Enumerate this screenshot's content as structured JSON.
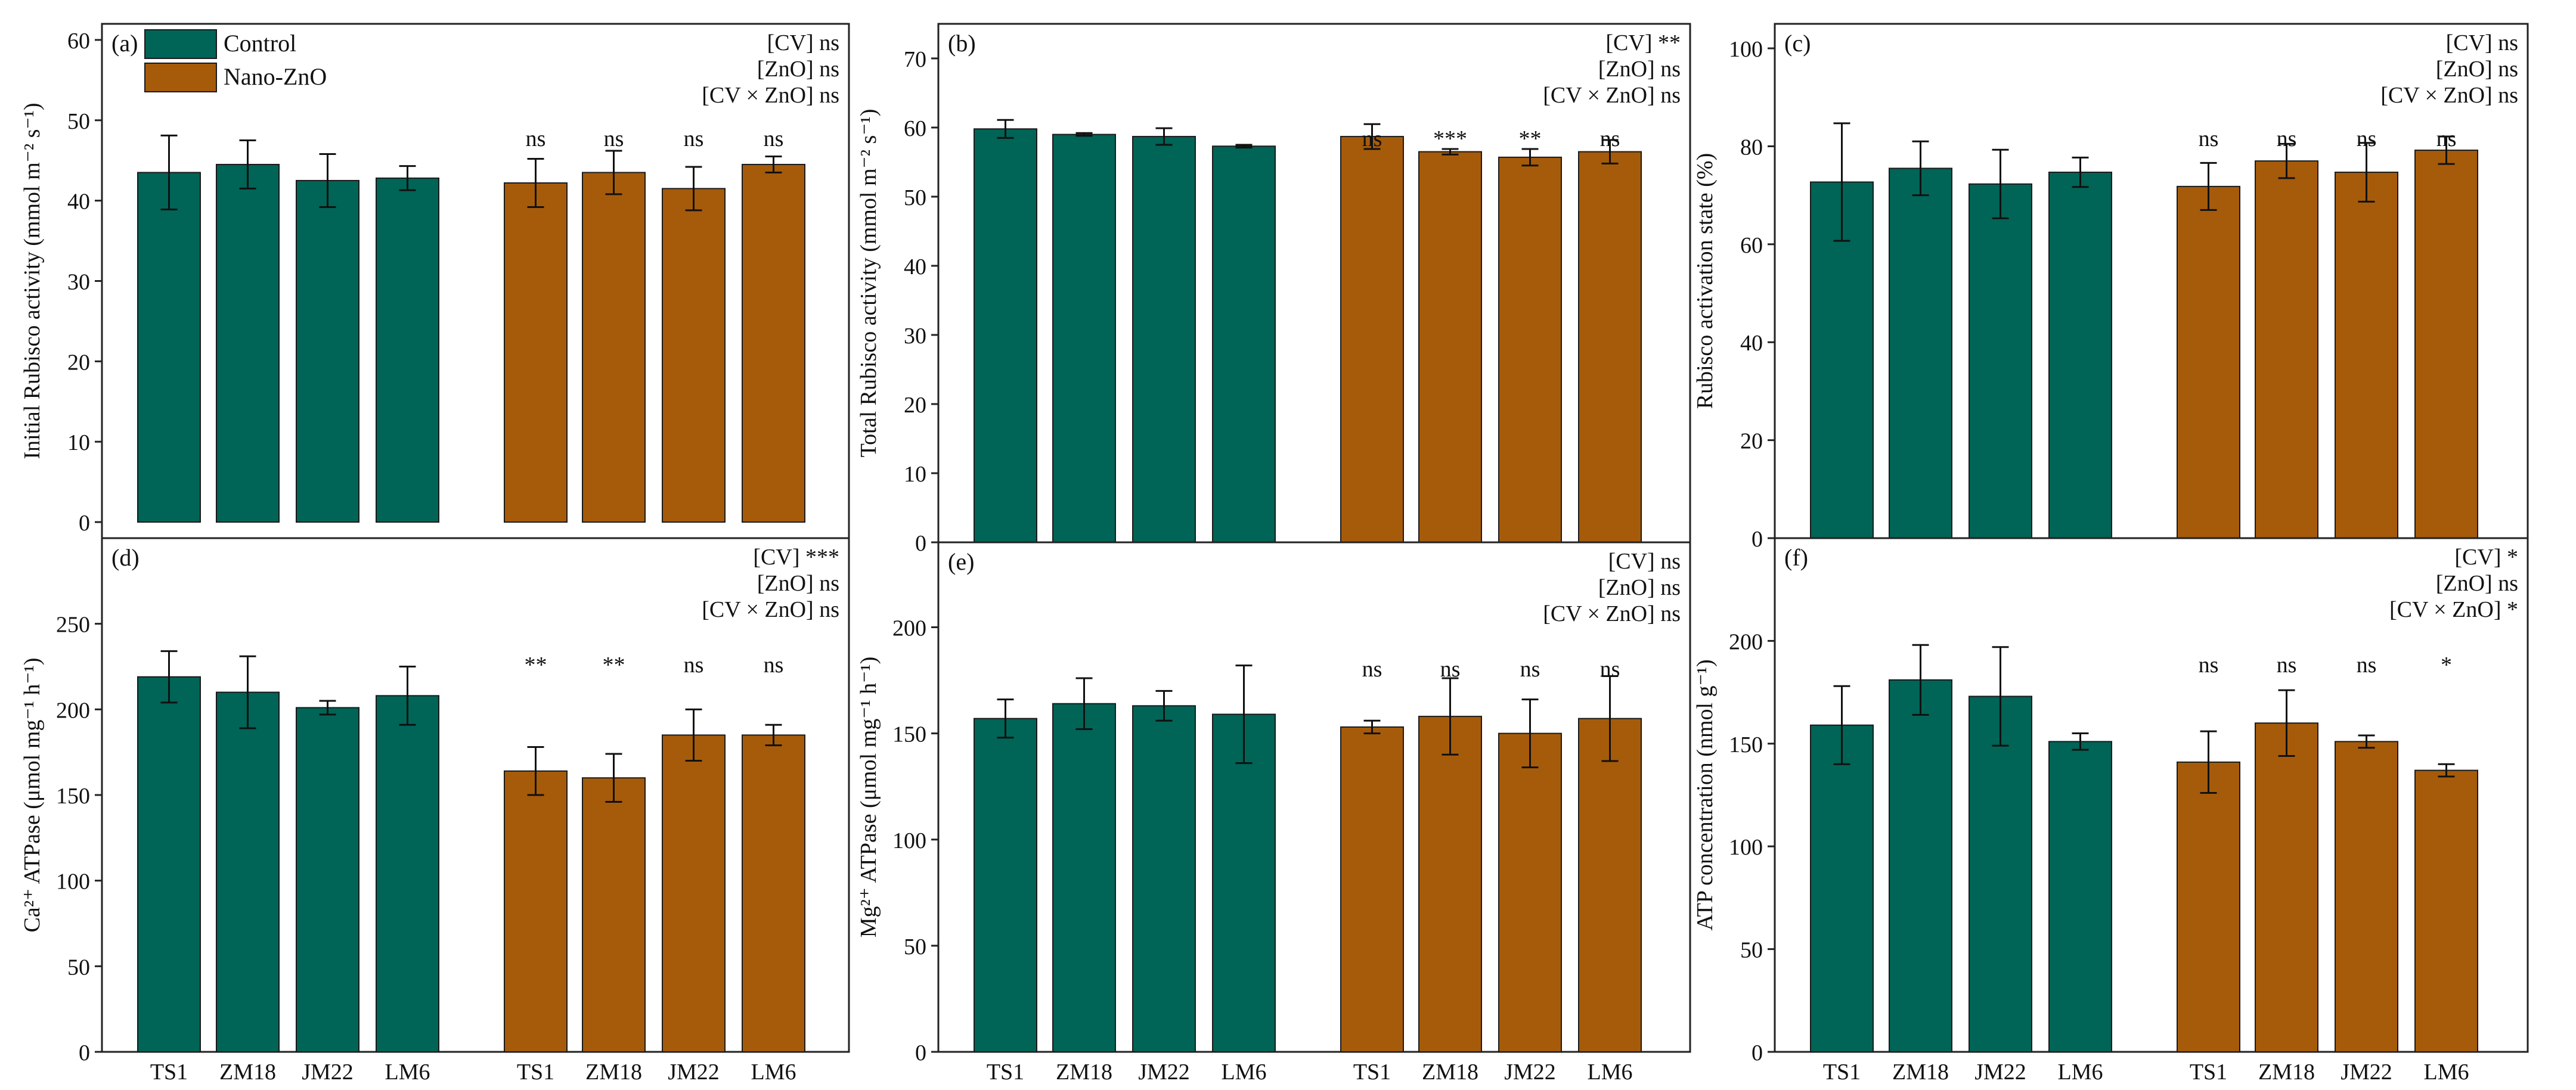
{
  "legend": {
    "control": "Control",
    "nano": "Nano-ZnO"
  },
  "colors": {
    "control": "#006457",
    "nano": "#A65B0A"
  },
  "chart_data": [
    {
      "id": "a",
      "label": "(a)",
      "type": "bar",
      "ylabel": "Initial Rubisco activity (mmol m⁻² s⁻¹)",
      "ylim": [
        -2,
        62
      ],
      "ticks": [
        0,
        10,
        20,
        30,
        40,
        50,
        60
      ],
      "categories": [
        "TS1",
        "ZM18",
        "JM22",
        "LM6"
      ],
      "series": [
        {
          "name": "Control",
          "values": [
            43.5,
            44.5,
            42.5,
            42.8
          ],
          "errors": [
            4.6,
            3.0,
            3.3,
            1.5
          ]
        },
        {
          "name": "Nano-ZnO",
          "values": [
            42.2,
            43.5,
            41.5,
            44.5
          ],
          "errors": [
            3.0,
            2.7,
            2.7,
            1.0
          ]
        }
      ],
      "significance": [
        "ns",
        "ns",
        "ns",
        "ns"
      ],
      "stats": [
        [
          "[CV]",
          "ns"
        ],
        [
          "[ZnO]",
          "ns"
        ],
        [
          "[CV × ZnO]",
          "ns"
        ]
      ]
    },
    {
      "id": "b",
      "label": "(b)",
      "type": "bar",
      "ylabel": "Total Rubisco activity (mmol m⁻² s⁻¹)",
      "ylim": [
        0,
        75
      ],
      "ticks": [
        0,
        10,
        20,
        30,
        40,
        50,
        60,
        70
      ],
      "categories": [
        "TS1",
        "ZM18",
        "JM22",
        "LM6"
      ],
      "series": [
        {
          "name": "Control",
          "values": [
            59.8,
            59.0,
            58.7,
            57.3
          ],
          "errors": [
            1.3,
            0.2,
            1.2,
            0.2
          ]
        },
        {
          "name": "Nano-ZnO",
          "values": [
            58.7,
            56.5,
            55.7,
            56.5
          ],
          "errors": [
            1.8,
            0.4,
            1.2,
            1.7
          ]
        }
      ],
      "significance": [
        "ns",
        "***",
        "**",
        "ns"
      ],
      "stats": [
        [
          "[CV]",
          "**"
        ],
        [
          "[ZnO]",
          "ns"
        ],
        [
          "[CV × ZnO]",
          "ns"
        ]
      ]
    },
    {
      "id": "c",
      "label": "(c)",
      "type": "bar",
      "ylabel": "Rubisco activation state (%)",
      "ylim": [
        0,
        105
      ],
      "ticks": [
        0,
        20,
        40,
        60,
        80,
        100
      ],
      "categories": [
        "TS1",
        "ZM18",
        "JM22",
        "LM6"
      ],
      "series": [
        {
          "name": "Control",
          "values": [
            72.7,
            75.5,
            72.3,
            74.7
          ],
          "errors": [
            12.0,
            5.5,
            7.0,
            3.0
          ]
        },
        {
          "name": "Nano-ZnO",
          "values": [
            71.8,
            77.0,
            74.7,
            79.2
          ],
          "errors": [
            4.8,
            3.5,
            6.0,
            2.8
          ]
        }
      ],
      "significance": [
        "ns",
        "ns",
        "ns",
        "ns"
      ],
      "stats": [
        [
          "[CV]",
          "ns"
        ],
        [
          "[ZnO]",
          "ns"
        ],
        [
          "[CV × ZnO]",
          "ns"
        ]
      ]
    },
    {
      "id": "d",
      "label": "(d)",
      "type": "bar",
      "ylabel": "Ca²⁺ ATPase (μmol mg⁻¹ h⁻¹)",
      "ylim": [
        0,
        300
      ],
      "ticks": [
        0,
        50,
        100,
        150,
        200,
        250
      ],
      "categories": [
        "TS1",
        "ZM18",
        "JM22",
        "LM6"
      ],
      "series": [
        {
          "name": "Control",
          "values": [
            219,
            210,
            201,
            208
          ],
          "errors": [
            15,
            21,
            4,
            17
          ]
        },
        {
          "name": "Nano-ZnO",
          "values": [
            164,
            160,
            185,
            185
          ],
          "errors": [
            14,
            14,
            15,
            6
          ]
        }
      ],
      "significance": [
        "**",
        "**",
        "ns",
        "ns"
      ],
      "stats": [
        [
          "[CV]",
          "***"
        ],
        [
          "[ZnO]",
          "ns"
        ],
        [
          "[CV × ZnO]",
          "ns"
        ]
      ]
    },
    {
      "id": "e",
      "label": "(e)",
      "type": "bar",
      "ylabel": "Mg²⁺ ATPase (μmol mg⁻¹ h⁻¹)",
      "ylim": [
        0,
        240
      ],
      "ticks": [
        0,
        50,
        100,
        150,
        200
      ],
      "categories": [
        "TS1",
        "ZM18",
        "JM22",
        "LM6"
      ],
      "series": [
        {
          "name": "Control",
          "values": [
            157,
            164,
            163,
            159
          ],
          "errors": [
            9,
            12,
            7,
            23
          ]
        },
        {
          "name": "Nano-ZnO",
          "values": [
            153,
            158,
            150,
            157
          ],
          "errors": [
            3,
            18,
            16,
            20
          ]
        }
      ],
      "significance": [
        "ns",
        "ns",
        "ns",
        "ns"
      ],
      "stats": [
        [
          "[CV]",
          "ns"
        ],
        [
          "[ZnO]",
          "ns"
        ],
        [
          "[CV × ZnO]",
          "ns"
        ]
      ]
    },
    {
      "id": "f",
      "label": "(f)",
      "type": "bar",
      "ylabel": "ATP concentration (nmol g⁻¹)",
      "ylim": [
        0,
        250
      ],
      "ticks": [
        0,
        50,
        100,
        150,
        200
      ],
      "categories": [
        "TS1",
        "ZM18",
        "JM22",
        "LM6"
      ],
      "series": [
        {
          "name": "Control",
          "values": [
            159,
            181,
            173,
            151
          ],
          "errors": [
            19,
            17,
            24,
            4
          ]
        },
        {
          "name": "Nano-ZnO",
          "values": [
            141,
            160,
            151,
            137
          ],
          "errors": [
            15,
            16,
            3,
            3
          ]
        }
      ],
      "significance": [
        "ns",
        "ns",
        "ns",
        "*"
      ],
      "stats": [
        [
          "[CV]",
          "*"
        ],
        [
          "[ZnO]",
          "ns"
        ],
        [
          "[CV × ZnO]",
          "*"
        ]
      ]
    }
  ]
}
